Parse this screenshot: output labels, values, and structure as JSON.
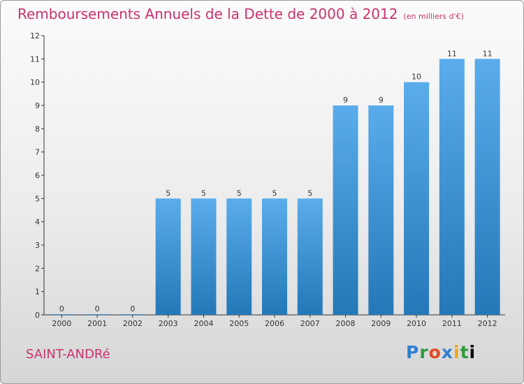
{
  "title": "Remboursements Annuels de la Dette de 2000 à 2012",
  "title_unit": "(en milliers d'€)",
  "commune": "SAINT-ANDRé",
  "logo": "Proxiti",
  "colors": {
    "title": "#c8326e",
    "bar_light": "#5aaceb",
    "bar_dark": "#2478b8"
  },
  "chart_data": {
    "type": "bar",
    "categories": [
      "2000",
      "2001",
      "2002",
      "2003",
      "2004",
      "2005",
      "2006",
      "2007",
      "2008",
      "2009",
      "2010",
      "2011",
      "2012"
    ],
    "values": [
      0,
      0,
      0,
      5,
      5,
      5,
      5,
      5,
      9,
      9,
      10,
      11,
      11
    ],
    "ylim": [
      0,
      12
    ],
    "yticks": [
      0,
      1,
      2,
      3,
      4,
      5,
      6,
      7,
      8,
      9,
      10,
      11,
      12
    ],
    "grid": false
  }
}
